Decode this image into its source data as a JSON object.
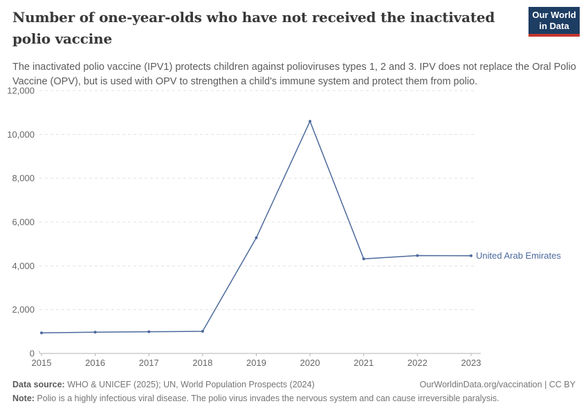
{
  "header": {
    "title": "Number of one-year-olds who have not received the inactivated polio vaccine",
    "subtitle": "The inactivated polio vaccine (IPV1) protects children against polioviruses types 1, 2 and 3. IPV does not replace the Oral Polio Vaccine (OPV), but is used with OPV to strengthen a child's immune system and protect them from polio.",
    "logo": {
      "line1": "Our World",
      "line2": "in Data",
      "bg_color": "#1d3d63",
      "bar_color": "#c5362e"
    }
  },
  "chart_data": {
    "type": "line",
    "title": "Number of one-year-olds who have not received the inactivated polio vaccine",
    "xlabel": "",
    "ylabel": "",
    "x": [
      2015,
      2016,
      2017,
      2018,
      2019,
      2020,
      2021,
      2022,
      2023
    ],
    "series": [
      {
        "name": "United Arab Emirates",
        "values": [
          940,
          970,
          990,
          1010,
          5280,
          10600,
          4320,
          4470,
          4460
        ],
        "color": "#4c6a9c"
      }
    ],
    "ylim": [
      0,
      12000
    ],
    "yticks": [
      0,
      2000,
      4000,
      6000,
      8000,
      10000,
      12000
    ],
    "ytick_labels": [
      "0",
      "2,000",
      "4,000",
      "6,000",
      "8,000",
      "10,000",
      "12,000"
    ],
    "grid": "horizontal dashed gridlines",
    "legend": "inline label at right end of line"
  },
  "footer": {
    "datasource_label": "Data source:",
    "datasource_text": " WHO & UNICEF (2025); UN, World Population Prospects (2024)",
    "license_text": "OurWorldinData.org/vaccination | CC BY",
    "note_label": "Note:",
    "note_text": " Polio is a highly infectious viral disease. The polio virus invades the nervous system and can cause irreversible paralysis."
  },
  "colors": {
    "line": "#4c6a9c",
    "axis": "#b3b3b3",
    "gridline": "#e0e0e0",
    "tick_text": "#666666",
    "title_text": "#383838",
    "subtitle_text": "#5b5b5b"
  }
}
